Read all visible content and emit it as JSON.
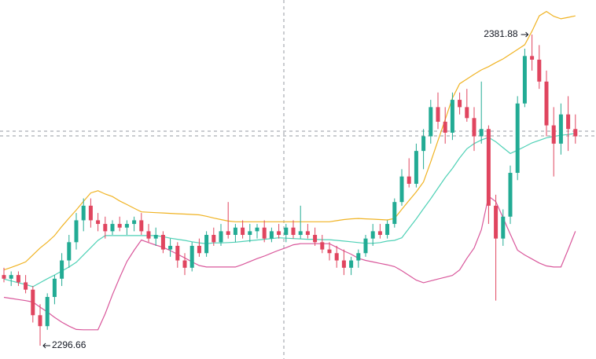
{
  "chart_data": {
    "type": "candlestick",
    "up_color": "#22ab94",
    "down_color": "#e0455f",
    "ylim": [
      2293,
      2391.35
    ],
    "open": [
      2316,
      2315,
      2316,
      2314,
      2312,
      2305,
      2302,
      2310,
      2315,
      2320,
      2325,
      2331,
      2335,
      2331,
      2330,
      2328,
      2330,
      2329,
      2330,
      2331,
      2328,
      2326,
      2327,
      2323,
      2324,
      2320,
      2318,
      2324,
      2322,
      2327,
      2325,
      2328,
      2327,
      2329,
      2327,
      2328,
      2329,
      2326,
      2328,
      2327,
      2329,
      2327,
      2328,
      2327,
      2325,
      2323,
      2322,
      2320,
      2318,
      2320,
      2322,
      2326,
      2328,
      2327,
      2330,
      2336,
      2343,
      2341,
      2350,
      2354,
      2362,
      2358,
      2355,
      2364,
      2362,
      2359,
      2354,
      2356,
      2335,
      2326,
      2332,
      2344,
      2363,
      2376,
      2375,
      2369,
      2357,
      2352,
      2360,
      2356
    ],
    "high": [
      2318,
      2317,
      2317,
      2316,
      2313,
      2308,
      2311,
      2316,
      2322,
      2327,
      2333,
      2337,
      2337,
      2333,
      2332,
      2331,
      2332,
      2331,
      2332,
      2333,
      2330,
      2329,
      2328,
      2326,
      2325,
      2322,
      2325,
      2326,
      2328,
      2329,
      2330,
      2336,
      2330,
      2331,
      2330,
      2330,
      2331,
      2329,
      2330,
      2330,
      2331,
      2335,
      2330,
      2329,
      2327,
      2325,
      2324,
      2323,
      2321,
      2323,
      2327,
      2330,
      2330,
      2331,
      2337,
      2345,
      2348,
      2352,
      2356,
      2364,
      2366,
      2362,
      2366,
      2366,
      2367,
      2362,
      2369,
      2357,
      2338,
      2334,
      2346,
      2365,
      2378,
      2381.88,
      2379,
      2372,
      2362,
      2363,
      2365,
      2360
    ],
    "low": [
      2314,
      2313,
      2313,
      2311,
      2303,
      2296.66,
      2301,
      2308,
      2313,
      2318,
      2323,
      2328,
      2329,
      2328,
      2326,
      2327,
      2328,
      2327,
      2328,
      2327,
      2325,
      2324,
      2322,
      2321,
      2318,
      2316,
      2317,
      2321,
      2321,
      2324,
      2324,
      2326,
      2325,
      2326,
      2325,
      2326,
      2325,
      2325,
      2326,
      2325,
      2326,
      2326,
      2326,
      2324,
      2322,
      2320,
      2318,
      2316,
      2316,
      2318,
      2321,
      2324,
      2326,
      2326,
      2329,
      2335,
      2340,
      2340,
      2345,
      2352,
      2356,
      2352,
      2353,
      2360,
      2358,
      2350,
      2352,
      2330,
      2309,
      2324,
      2330,
      2342,
      2362,
      2372,
      2367,
      2354,
      2343,
      2349,
      2350,
      2352
    ],
    "close": [
      2315,
      2316,
      2314,
      2312,
      2305,
      2302,
      2310,
      2315,
      2320,
      2325,
      2331,
      2335,
      2331,
      2330,
      2328,
      2330,
      2329,
      2330,
      2331,
      2328,
      2326,
      2327,
      2323,
      2324,
      2320,
      2318,
      2324,
      2322,
      2327,
      2325,
      2328,
      2327,
      2329,
      2327,
      2328,
      2329,
      2326,
      2328,
      2327,
      2329,
      2327,
      2328,
      2327,
      2325,
      2323,
      2322,
      2320,
      2318,
      2320,
      2322,
      2326,
      2328,
      2327,
      2330,
      2336,
      2343,
      2341,
      2350,
      2354,
      2362,
      2358,
      2355,
      2364,
      2362,
      2359,
      2354,
      2356,
      2335,
      2326,
      2332,
      2344,
      2363,
      2376,
      2375,
      2369,
      2357,
      2352,
      2360,
      2356,
      2354
    ],
    "bands": [
      {
        "color": "#f0b323",
        "values": [
          2317.4,
          2318.1,
          2318.8,
          2319.6,
          2321.5,
          2323.4,
          2325,
          2326.8,
          2329.3,
          2331.6,
          2333.8,
          2336.2,
          2338.5,
          2339.1,
          2338.2,
          2337.5,
          2336.3,
          2335.3,
          2334.3,
          2333.3,
          2333.2,
          2333.1,
          2333,
          2332.9,
          2332.8,
          2332.7,
          2332.6,
          2332.5,
          2332.1,
          2331.6,
          2331.2,
          2330.8,
          2330.6,
          2330.6,
          2330.6,
          2330.6,
          2330.6,
          2330.6,
          2330.6,
          2330.6,
          2330.6,
          2330.6,
          2330.6,
          2330.6,
          2330.6,
          2330.6,
          2330.9,
          2331.2,
          2331.4,
          2331.5,
          2331.4,
          2331.3,
          2331.2,
          2331.1,
          2331.5,
          2334,
          2336.4,
          2338.8,
          2341.5,
          2347,
          2352.8,
          2358.6,
          2364.5,
          2368.4,
          2369.7,
          2371,
          2372.2,
          2373.1,
          2374.2,
          2375.2,
          2376.5,
          2377.8,
          2379.1,
          2382.8,
          2387,
          2388.2,
          2386.9,
          2386.2,
          2386.6,
          2387
        ]
      },
      {
        "color": "#4fd1b6",
        "values": [
          2314.9,
          2314.4,
          2313.9,
          2313.4,
          2312.8,
          2313.9,
          2315,
          2316,
          2317.1,
          2318.2,
          2319.5,
          2321.5,
          2323.5,
          2325.5,
          2326.8,
          2326.8,
          2326.8,
          2326.8,
          2326.8,
          2326.8,
          2326.8,
          2326.8,
          2326.5,
          2326.1,
          2325.8,
          2325.5,
          2325.1,
          2324.8,
          2324.6,
          2324.8,
          2324.8,
          2324.9,
          2325,
          2325.2,
          2325.4,
          2325.6,
          2325.8,
          2326,
          2326.2,
          2326.1,
          2326,
          2325.9,
          2325.8,
          2325.8,
          2325.7,
          2325.7,
          2325.5,
          2325.3,
          2325.1,
          2324.9,
          2324.7,
          2324.7,
          2324.9,
          2325.3,
          2325.5,
          2326.2,
          2328.8,
          2331.4,
          2334.2,
          2336.9,
          2339.8,
          2342.7,
          2345.2,
          2348.1,
          2350.6,
          2352,
          2353,
          2353.7,
          2352.5,
          2350.9,
          2349.3,
          2350.2,
          2351.2,
          2352.2,
          2352.9,
          2353.6,
          2354,
          2354.3,
          2354.5,
          2354.8
        ]
      },
      {
        "color": "#d9579b",
        "values": [
          2309.9,
          2309.6,
          2309.3,
          2309,
          2308.6,
          2307.2,
          2305.9,
          2304.4,
          2303.1,
          2302,
          2301.1,
          2301,
          2301,
          2301,
          2305.4,
          2310.6,
          2315.3,
          2319.7,
          2322.8,
          2325.6,
          2324.9,
          2324.2,
          2323.6,
          2322.7,
          2321.7,
          2320.7,
          2319.6,
          2318.6,
          2318.2,
          2318.2,
          2318.2,
          2318.2,
          2318.2,
          2318.9,
          2319.7,
          2320.5,
          2321.2,
          2322,
          2322.8,
          2323.5,
          2324.3,
          2324.6,
          2324.6,
          2324.6,
          2324.6,
          2324.6,
          2323.6,
          2322.6,
          2321.7,
          2320.6,
          2320,
          2319.6,
          2319.2,
          2318.8,
          2318.3,
          2317.2,
          2315.9,
          2314.6,
          2313.9,
          2314.4,
          2314.9,
          2315.4,
          2315.9,
          2317.4,
          2320.6,
          2323.4,
          2328.4,
          2337.6,
          2336.1,
          2331.7,
          2327.2,
          2322.8,
          2321.5,
          2320.4,
          2319.3,
          2318.5,
          2318.2,
          2318.2,
          2323,
          2328
        ]
      }
    ]
  }
}
